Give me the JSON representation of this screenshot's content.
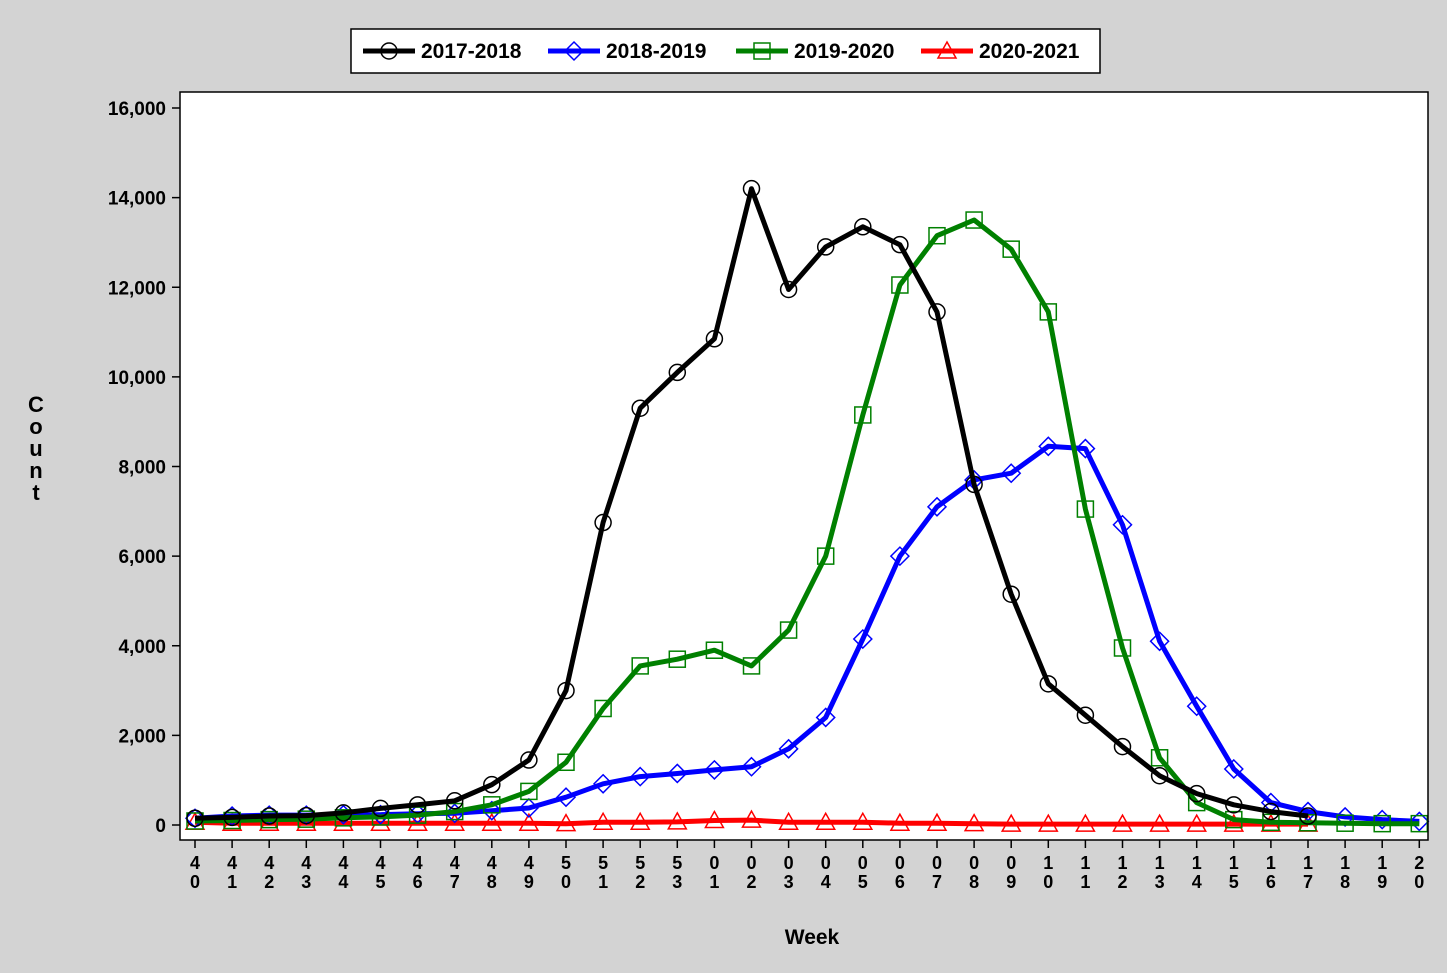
{
  "chart_data": {
    "type": "line",
    "title": "",
    "xlabel": "Week",
    "ylabel": "Count",
    "ylim": [
      0,
      16000
    ],
    "yticks": [
      0,
      2000,
      4000,
      6000,
      8000,
      10000,
      12000,
      14000,
      16000
    ],
    "ytick_labels": [
      "0",
      "2,000",
      "4,000",
      "6,000",
      "8,000",
      "10,000",
      "12,000",
      "14,000",
      "16,000"
    ],
    "grid": false,
    "legend_position": "top",
    "categories": [
      "40",
      "41",
      "42",
      "43",
      "44",
      "45",
      "46",
      "47",
      "48",
      "49",
      "50",
      "51",
      "52",
      "53",
      "01",
      "02",
      "03",
      "04",
      "05",
      "06",
      "07",
      "08",
      "09",
      "10",
      "11",
      "12",
      "13",
      "14",
      "15",
      "16",
      "17",
      "18",
      "19",
      "20"
    ],
    "series": [
      {
        "name": "2017-2018",
        "color": "#000000",
        "marker": "circle",
        "values": [
          150,
          170,
          200,
          210,
          270,
          370,
          450,
          540,
          900,
          1450,
          3000,
          6750,
          9300,
          10100,
          10850,
          14200,
          11950,
          12900,
          13350,
          12950,
          11450,
          7600,
          5150,
          3150,
          2450,
          1750,
          1100,
          700,
          450,
          300,
          200,
          null,
          null,
          null
        ]
      },
      {
        "name": "2018-2019",
        "color": "#0000ff",
        "marker": "diamond",
        "values": [
          150,
          200,
          220,
          220,
          230,
          230,
          250,
          260,
          320,
          380,
          620,
          920,
          1080,
          1150,
          1230,
          1300,
          1700,
          2400,
          4150,
          6000,
          7100,
          7700,
          7850,
          8450,
          8400,
          6700,
          4100,
          2650,
          1250,
          500,
          300,
          180,
          120,
          80
        ]
      },
      {
        "name": "2019-2020",
        "color": "#008000",
        "marker": "square",
        "values": [
          90,
          100,
          120,
          130,
          160,
          180,
          220,
          300,
          450,
          750,
          1400,
          2600,
          3550,
          3700,
          3900,
          3550,
          4350,
          6000,
          9150,
          12050,
          13150,
          13500,
          12850,
          11450,
          7050,
          3950,
          1500,
          500,
          120,
          60,
          50,
          40,
          30,
          30
        ]
      },
      {
        "name": "2020-2021",
        "color": "#ff0000",
        "marker": "triangle",
        "values": [
          60,
          40,
          40,
          40,
          40,
          40,
          40,
          40,
          40,
          40,
          30,
          60,
          60,
          70,
          100,
          110,
          60,
          60,
          60,
          40,
          40,
          30,
          20,
          20,
          20,
          20,
          20,
          20,
          20,
          20,
          20,
          null,
          null,
          null
        ]
      }
    ]
  }
}
